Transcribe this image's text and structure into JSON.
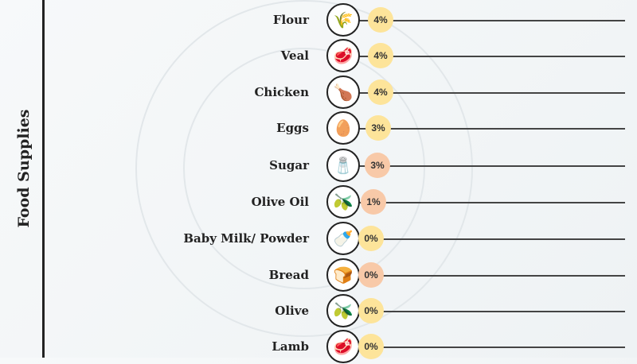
{
  "side_title": "Food Supplies",
  "colors": {
    "high": "#fde49a",
    "low": "#f8c9a8"
  },
  "chart_data": {
    "type": "bar",
    "title": "Food Supplies",
    "categories": [
      "Flour",
      "Veal",
      "Chicken",
      "Eggs",
      "Sugar",
      "Olive Oil",
      "Baby Milk/ Powder",
      "Bread",
      "Olive",
      "Lamb"
    ],
    "values": [
      4,
      4,
      4,
      3,
      3,
      1,
      0,
      0,
      0,
      0
    ],
    "labels": [
      "4%",
      "4%",
      "4%",
      "3%",
      "3%",
      "1%",
      "0%",
      "0%",
      "0%",
      "0%"
    ],
    "badge_colors": [
      "high",
      "high",
      "high",
      "high",
      "low",
      "low",
      "high",
      "low",
      "high",
      "high"
    ],
    "icons": [
      "flour-sack-icon",
      "veal-icon",
      "chicken-icon",
      "eggs-icon",
      "sugar-icon",
      "olive-oil-icon",
      "baby-milk-icon",
      "bread-icon",
      "olive-icon",
      "lamb-icon"
    ],
    "glyphs": [
      "🌾",
      "🥩",
      "🍗",
      "🥚",
      "🧂",
      "🫒",
      "🍼",
      "🍞",
      "🫒",
      "🥩"
    ]
  }
}
